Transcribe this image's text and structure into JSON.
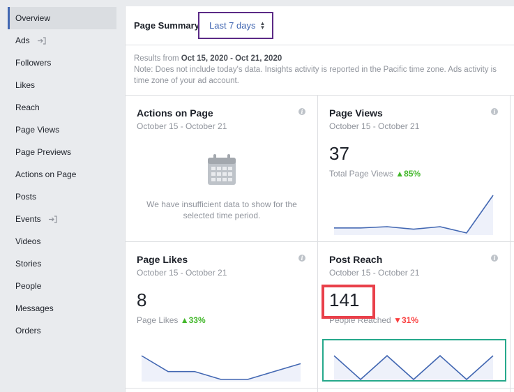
{
  "sidebar": {
    "items": [
      {
        "label": "Overview",
        "active": true
      },
      {
        "label": "Ads",
        "external": true
      },
      {
        "label": "Followers"
      },
      {
        "label": "Likes"
      },
      {
        "label": "Reach"
      },
      {
        "label": "Page Views"
      },
      {
        "label": "Page Previews"
      },
      {
        "label": "Actions on Page"
      },
      {
        "label": "Posts"
      },
      {
        "label": "Events",
        "external": true
      },
      {
        "label": "Videos"
      },
      {
        "label": "Stories"
      },
      {
        "label": "People"
      },
      {
        "label": "Messages"
      },
      {
        "label": "Orders"
      }
    ]
  },
  "summary": {
    "title": "Page Summary",
    "range": "Last 7 days"
  },
  "info": {
    "results_prefix": "Results from ",
    "results_range": "Oct 15, 2020 - Oct 21, 2020",
    "note_line1": "Note: Does not include today's data. Insights activity is reported in the Pacific time zone. Ads activity is",
    "note_line2": "time zone of your ad account."
  },
  "cards": {
    "actions": {
      "title": "Actions on Page",
      "date": "October 15 - October 21",
      "message_line1": "We have insufficient data to show for the",
      "message_line2": "selected time period."
    },
    "views": {
      "title": "Page Views",
      "date": "October 15 - October 21",
      "value": "37",
      "label": "Total Page Views",
      "change": "85%",
      "trend": [
        2,
        2,
        3,
        1,
        3,
        -2,
        28
      ]
    },
    "likes": {
      "title": "Page Likes",
      "date": "October 15 - October 21",
      "value": "8",
      "label": "Page Likes",
      "change": "33%",
      "trend": [
        3,
        1,
        1,
        0,
        0,
        1,
        2
      ]
    },
    "reach": {
      "title": "Post Reach",
      "date": "October 15 - October 21",
      "value": "141",
      "label": "People Reached",
      "change": "31%",
      "trend": [
        2,
        1,
        2,
        1,
        2,
        1,
        2
      ]
    }
  },
  "colors": {
    "accent": "#4267b2",
    "up": "#42b72a",
    "down": "#fa3e3e",
    "highlight_red": "#e9404a",
    "highlight_green": "#26a98b",
    "highlight_purple": "#5b2a86"
  }
}
